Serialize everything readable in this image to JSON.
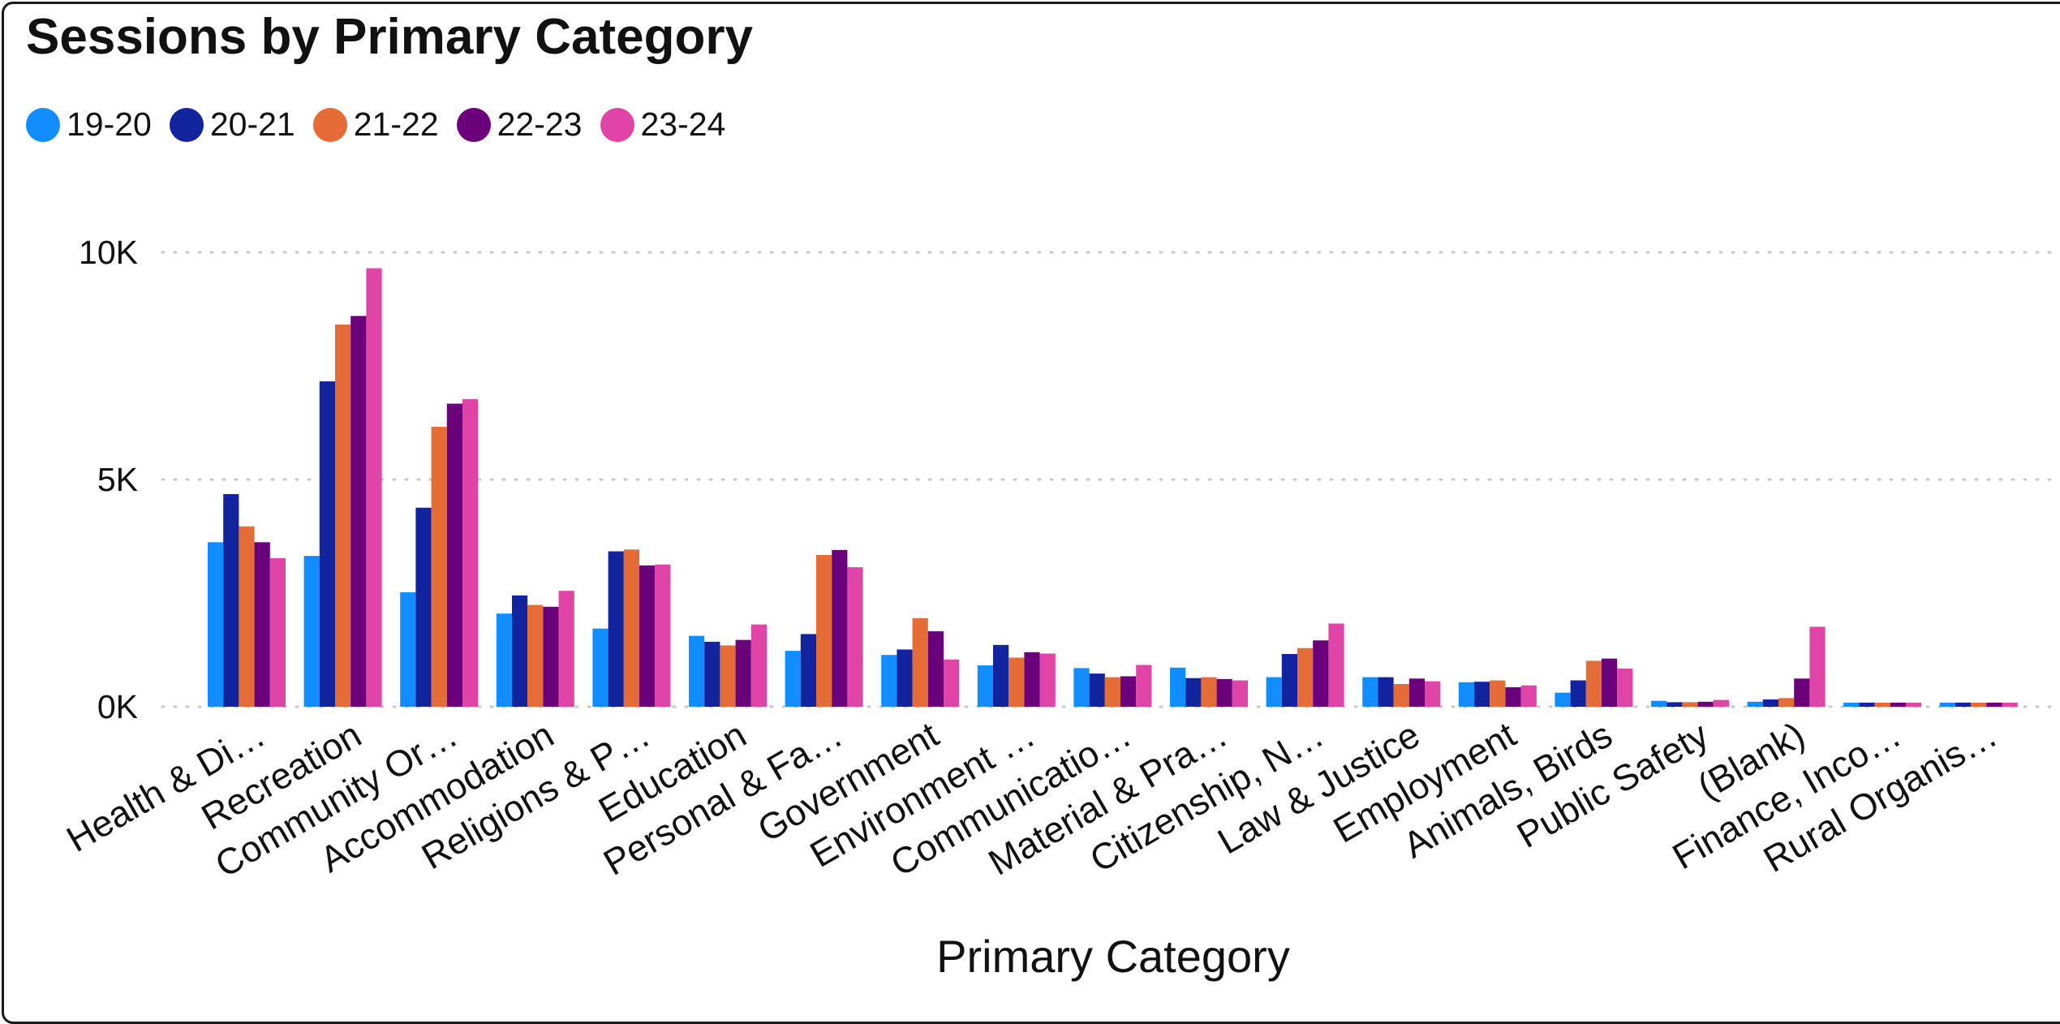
{
  "chart_data": {
    "type": "bar",
    "title": "Sessions by Primary Category",
    "xlabel": "Primary Category",
    "ylabel": "",
    "ylim": [
      0,
      10000
    ],
    "y_ticks": [
      {
        "value": 0,
        "label": "0K"
      },
      {
        "value": 5000,
        "label": "5K"
      },
      {
        "value": 10000,
        "label": "10K"
      }
    ],
    "grid": true,
    "legend_position": "top-left",
    "categories": [
      "Health & Di…",
      "Recreation",
      "Community Or…",
      "Accommodation",
      "Religions & P…",
      "Education",
      "Personal & Fa…",
      "Government",
      "Environment …",
      "Communicatio…",
      "Material & Pra…",
      "Citizenship, N…",
      "Law & Justice",
      "Employment",
      "Animals, Birds",
      "Public Safety",
      "(Blank)",
      "Finance, Inco…",
      "Rural Organis…"
    ],
    "series": [
      {
        "name": "19-20",
        "color": "#118DFF",
        "values": [
          3620,
          3320,
          2520,
          2050,
          1720,
          1560,
          1230,
          1140,
          910,
          850,
          860,
          650,
          650,
          540,
          310,
          130,
          110,
          90,
          90
        ]
      },
      {
        "name": "20-21",
        "color": "#12239E",
        "values": [
          4680,
          7160,
          4380,
          2450,
          3420,
          1430,
          1600,
          1260,
          1360,
          730,
          630,
          1160,
          650,
          550,
          580,
          100,
          160,
          90,
          90
        ]
      },
      {
        "name": "21-22",
        "color": "#E66C37",
        "values": [
          3970,
          8410,
          6160,
          2240,
          3460,
          1350,
          3340,
          1950,
          1080,
          650,
          650,
          1290,
          500,
          580,
          1010,
          100,
          190,
          90,
          90
        ]
      },
      {
        "name": "22-23",
        "color": "#6B007B",
        "values": [
          3620,
          8600,
          6670,
          2200,
          3110,
          1470,
          3450,
          1660,
          1200,
          670,
          610,
          1460,
          620,
          430,
          1060,
          110,
          620,
          90,
          90
        ]
      },
      {
        "name": "23-24",
        "color": "#E044A7",
        "values": [
          3270,
          9650,
          6770,
          2550,
          3130,
          1810,
          3070,
          1040,
          1170,
          920,
          580,
          1830,
          560,
          470,
          840,
          150,
          1760,
          90,
          90
        ]
      }
    ]
  }
}
